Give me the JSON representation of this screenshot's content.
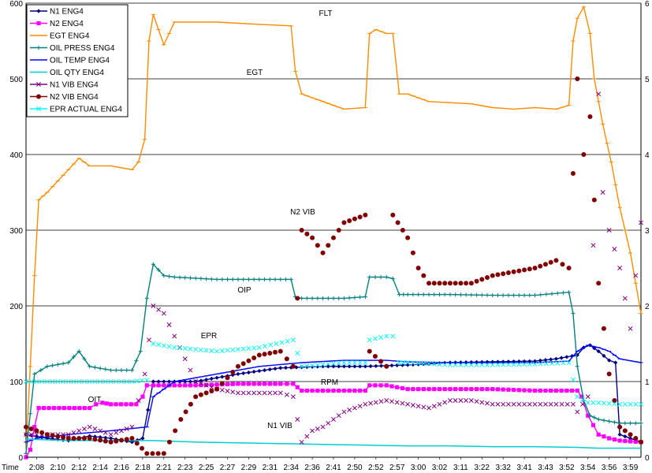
{
  "chart_data": {
    "type": "scatter",
    "title": "",
    "xlabel": "Time",
    "ylabel": "",
    "y_left_lim": [
      0,
      600
    ],
    "y_right_lim": [
      0,
      6
    ],
    "y_left_ticks": [
      "0",
      "100",
      "200",
      "300",
      "400",
      "500",
      "600"
    ],
    "y_right_ticks": [
      "0",
      "1",
      "2",
      "3",
      "4",
      "5",
      "6"
    ],
    "grid": "horizontal",
    "legend_position": "top-left",
    "x_tick_labels": [
      "2:08",
      "2:10",
      "2:12",
      "2:14",
      "2:16",
      "2:18",
      "2:21",
      "2:23",
      "2:25",
      "2:27",
      "2:29",
      "2:31",
      "2:34",
      "2:36",
      "2:41",
      "2:50",
      "2:52",
      "2:57",
      "3:00",
      "3:02",
      "3:11",
      "3:22",
      "3:32",
      "3:41",
      "3:43",
      "3:52",
      "3:54",
      "3:56",
      "3:59"
    ],
    "annotations": [
      "FLT",
      "EGT",
      "N2 VIB",
      "OIP",
      "EPR",
      "RPM",
      "OIT",
      "N1 VIB"
    ],
    "series": [
      {
        "name": "N1 ENG4",
        "color": "#000080",
        "axis": "left",
        "marker": "diamond",
        "points": [
          [
            0,
            30
          ],
          [
            1,
            25
          ],
          [
            2,
            22
          ],
          [
            3,
            28
          ],
          [
            4,
            25
          ],
          [
            5,
            20
          ],
          [
            5.5,
            25
          ],
          [
            6,
            100
          ],
          [
            8,
            100
          ],
          [
            10,
            110
          ],
          [
            12,
            118
          ],
          [
            14,
            120
          ],
          [
            16,
            120
          ],
          [
            18,
            122
          ],
          [
            20,
            125
          ],
          [
            22,
            126
          ],
          [
            24,
            127
          ],
          [
            25,
            130
          ],
          [
            26,
            135
          ],
          [
            26.3,
            145
          ],
          [
            26.6,
            148
          ],
          [
            27,
            140
          ],
          [
            27.5,
            128
          ],
          [
            27.8,
            125
          ],
          [
            28,
            30
          ],
          [
            29,
            20
          ]
        ]
      },
      {
        "name": "N2 ENG4",
        "color": "#ff00ff",
        "axis": "left",
        "marker": "square",
        "points": [
          [
            0,
            0
          ],
          [
            0.2,
            10
          ],
          [
            0.4,
            40
          ],
          [
            0.6,
            65
          ],
          [
            3,
            65
          ],
          [
            3.3,
            70
          ],
          [
            3.6,
            72
          ],
          [
            4,
            70
          ],
          [
            5.2,
            70
          ],
          [
            5.5,
            80
          ],
          [
            5.7,
            95
          ],
          [
            6,
            95
          ],
          [
            8,
            95
          ],
          [
            10,
            97
          ],
          [
            12,
            97
          ],
          [
            12.6,
            97
          ],
          [
            13,
            88
          ],
          [
            15,
            88
          ],
          [
            16,
            88
          ],
          [
            16.2,
            95
          ],
          [
            17,
            95
          ],
          [
            18,
            90
          ],
          [
            20,
            90
          ],
          [
            22,
            90
          ],
          [
            24,
            88
          ],
          [
            25,
            88
          ],
          [
            26,
            88
          ],
          [
            26.2,
            80
          ],
          [
            26.5,
            55
          ],
          [
            27,
            30
          ],
          [
            27.5,
            25
          ],
          [
            28,
            22
          ],
          [
            29,
            20
          ]
        ]
      },
      {
        "name": "EGT ENG4",
        "color": "#ff8c00",
        "axis": "left",
        "marker": "dash",
        "points": [
          [
            0,
            5
          ],
          [
            0.2,
            120
          ],
          [
            0.4,
            240
          ],
          [
            0.6,
            340
          ],
          [
            1,
            350
          ],
          [
            2,
            380
          ],
          [
            2.5,
            395
          ],
          [
            3,
            385
          ],
          [
            4,
            385
          ],
          [
            5,
            380
          ],
          [
            5.3,
            390
          ],
          [
            5.6,
            420
          ],
          [
            5.8,
            550
          ],
          [
            6,
            585
          ],
          [
            6.5,
            545
          ],
          [
            7,
            575
          ],
          [
            9,
            575
          ],
          [
            11,
            572
          ],
          [
            12.5,
            570
          ],
          [
            12.7,
            510
          ],
          [
            13,
            480
          ],
          [
            14,
            470
          ],
          [
            15,
            460
          ],
          [
            16,
            462
          ],
          [
            16.2,
            560
          ],
          [
            16.5,
            565
          ],
          [
            17,
            560
          ],
          [
            17.3,
            560
          ],
          [
            17.6,
            480
          ],
          [
            18,
            480
          ],
          [
            19,
            470
          ],
          [
            21,
            467
          ],
          [
            22,
            462
          ],
          [
            23,
            460
          ],
          [
            24,
            462
          ],
          [
            25,
            460
          ],
          [
            25.6,
            465
          ],
          [
            25.8,
            550
          ],
          [
            26,
            580
          ],
          [
            26.3,
            595
          ],
          [
            26.6,
            560
          ],
          [
            26.8,
            500
          ],
          [
            27.2,
            440
          ],
          [
            27.6,
            390
          ],
          [
            28,
            330
          ],
          [
            28.5,
            270
          ],
          [
            29,
            190
          ]
        ]
      },
      {
        "name": "OIL PRESS ENG4",
        "color": "#008080",
        "axis": "left",
        "marker": "plus",
        "points": [
          [
            0,
            5
          ],
          [
            0.4,
            110
          ],
          [
            1,
            120
          ],
          [
            2,
            125
          ],
          [
            2.5,
            140
          ],
          [
            3,
            120
          ],
          [
            4,
            115
          ],
          [
            5,
            115
          ],
          [
            5.4,
            140
          ],
          [
            5.7,
            210
          ],
          [
            6,
            255
          ],
          [
            6.5,
            240
          ],
          [
            7,
            238
          ],
          [
            9,
            235
          ],
          [
            11,
            235
          ],
          [
            12.5,
            235
          ],
          [
            12.7,
            212
          ],
          [
            13,
            210
          ],
          [
            15,
            210
          ],
          [
            16,
            212
          ],
          [
            16.2,
            238
          ],
          [
            17,
            238
          ],
          [
            17.3,
            236
          ],
          [
            17.6,
            215
          ],
          [
            18,
            215
          ],
          [
            20,
            215
          ],
          [
            22,
            214
          ],
          [
            24,
            214
          ],
          [
            25.6,
            218
          ],
          [
            25.8,
            190
          ],
          [
            26,
            120
          ],
          [
            26.3,
            75
          ],
          [
            26.6,
            55
          ],
          [
            27,
            50
          ],
          [
            28,
            45
          ],
          [
            29,
            45
          ]
        ]
      },
      {
        "name": "OIL TEMP ENG4",
        "color": "#0000ff",
        "axis": "left",
        "marker": "dash",
        "points": [
          [
            0,
            20
          ],
          [
            0.5,
            25
          ],
          [
            2,
            30
          ],
          [
            4,
            35
          ],
          [
            5.7,
            40
          ],
          [
            6,
            80
          ],
          [
            7,
            100
          ],
          [
            9,
            110
          ],
          [
            11,
            120
          ],
          [
            13,
            125
          ],
          [
            15,
            128
          ],
          [
            17,
            128
          ],
          [
            18,
            126
          ],
          [
            20,
            125
          ],
          [
            22,
            125
          ],
          [
            24,
            125
          ],
          [
            25.6,
            127
          ],
          [
            26,
            140
          ],
          [
            26.5,
            148
          ],
          [
            27,
            145
          ],
          [
            27.5,
            140
          ],
          [
            28,
            130
          ],
          [
            29,
            125
          ]
        ]
      },
      {
        "name": "OIL QTY ENG4",
        "color": "#00ced1",
        "axis": "left",
        "marker": "none",
        "points": [
          [
            0,
            24
          ],
          [
            2,
            22
          ],
          [
            4,
            22
          ],
          [
            6,
            22
          ],
          [
            8,
            20
          ],
          [
            10,
            19
          ],
          [
            12,
            18
          ],
          [
            14,
            17
          ],
          [
            16,
            16
          ],
          [
            18,
            15
          ],
          [
            20,
            15
          ],
          [
            22,
            14
          ],
          [
            24,
            14
          ],
          [
            26,
            13
          ],
          [
            27,
            12
          ],
          [
            29,
            12
          ]
        ]
      },
      {
        "name": "N1 VIB ENG4",
        "color": "#800080",
        "axis": "right",
        "marker": "x",
        "points": [
          [
            0,
            0.3
          ],
          [
            1,
            0.3
          ],
          [
            2,
            0.3
          ],
          [
            3,
            0.4
          ],
          [
            4,
            0.3
          ],
          [
            5,
            0.4
          ],
          [
            5.6,
            1.1
          ],
          [
            6,
            2.0
          ],
          [
            6.5,
            1.9
          ],
          [
            7,
            1.6
          ],
          [
            8,
            1.0
          ],
          [
            9,
            0.9
          ],
          [
            10,
            0.85
          ],
          [
            11,
            0.85
          ],
          [
            12,
            0.85
          ],
          [
            12.6,
            0.8
          ],
          [
            13,
            0.2
          ],
          [
            13.5,
            0.35
          ],
          [
            14,
            0.4
          ],
          [
            15,
            0.6
          ],
          [
            16,
            0.7
          ],
          [
            17,
            0.75
          ],
          [
            18,
            0.7
          ],
          [
            19,
            0.65
          ],
          [
            20,
            0.75
          ],
          [
            21,
            0.75
          ],
          [
            22,
            0.7
          ],
          [
            23,
            0.7
          ],
          [
            24,
            0.7
          ],
          [
            25,
            0.7
          ],
          [
            25.8,
            0.7
          ],
          [
            26,
            0.6
          ],
          [
            26.5,
            0.8
          ],
          [
            27,
            4.8
          ],
          [
            27.2,
            3.5
          ],
          [
            27.5,
            3.0
          ],
          [
            28,
            2.5
          ],
          [
            28.5,
            1.7
          ],
          [
            29,
            3.1
          ]
        ]
      },
      {
        "name": "N2 VIB ENG4",
        "color": "#800000",
        "axis": "right",
        "marker": "circle",
        "points": [
          [
            0,
            0.4
          ],
          [
            1,
            0.3
          ],
          [
            2,
            0.25
          ],
          [
            3,
            0.25
          ],
          [
            4,
            0.2
          ],
          [
            5,
            0.25
          ],
          [
            5.7,
            0.05
          ],
          [
            6.5,
            0.05
          ],
          [
            7.3,
            0.5
          ],
          [
            8,
            0.8
          ],
          [
            9,
            0.9
          ],
          [
            10,
            1.2
          ],
          [
            11,
            1.35
          ],
          [
            12,
            1.4
          ],
          [
            12.6,
            1.2
          ],
          [
            13,
            3.0
          ],
          [
            13.5,
            2.9
          ],
          [
            14,
            2.7
          ],
          [
            15,
            3.1
          ],
          [
            16,
            3.2
          ],
          [
            16.2,
            1.4
          ],
          [
            17,
            1.2
          ],
          [
            17.3,
            3.2
          ],
          [
            18,
            2.9
          ],
          [
            18.5,
            2.5
          ],
          [
            19,
            2.3
          ],
          [
            20,
            2.3
          ],
          [
            21,
            2.3
          ],
          [
            22,
            2.4
          ],
          [
            23,
            2.45
          ],
          [
            24,
            2.5
          ],
          [
            25,
            2.6
          ],
          [
            25.6,
            2.5
          ],
          [
            26,
            5.0
          ],
          [
            26.3,
            4.0
          ],
          [
            26.6,
            4.5
          ],
          [
            27,
            2.3
          ],
          [
            27.5,
            1.1
          ],
          [
            28,
            0.4
          ],
          [
            29,
            0.2
          ]
        ]
      },
      {
        "name": "EPR ACTUAL ENG4",
        "color": "#00ffff",
        "axis": "right",
        "marker": "x",
        "points": [
          [
            0,
            1.0
          ],
          [
            3,
            1.0
          ],
          [
            5,
            1.0
          ],
          [
            5.7,
            1.02
          ],
          [
            6,
            1.5
          ],
          [
            7,
            1.45
          ],
          [
            9,
            1.4
          ],
          [
            11,
            1.45
          ],
          [
            12.6,
            1.55
          ],
          [
            13,
            1.2
          ],
          [
            15,
            1.25
          ],
          [
            16,
            1.25
          ],
          [
            16.2,
            1.55
          ],
          [
            17,
            1.6
          ],
          [
            17.3,
            1.6
          ],
          [
            17.6,
            1.25
          ],
          [
            18,
            1.25
          ],
          [
            20,
            1.22
          ],
          [
            22,
            1.22
          ],
          [
            24,
            1.23
          ],
          [
            25.6,
            1.25
          ],
          [
            26,
            0.8
          ],
          [
            26.5,
            0.72
          ],
          [
            27,
            0.72
          ],
          [
            28,
            0.7
          ],
          [
            29,
            0.7
          ]
        ]
      }
    ]
  }
}
